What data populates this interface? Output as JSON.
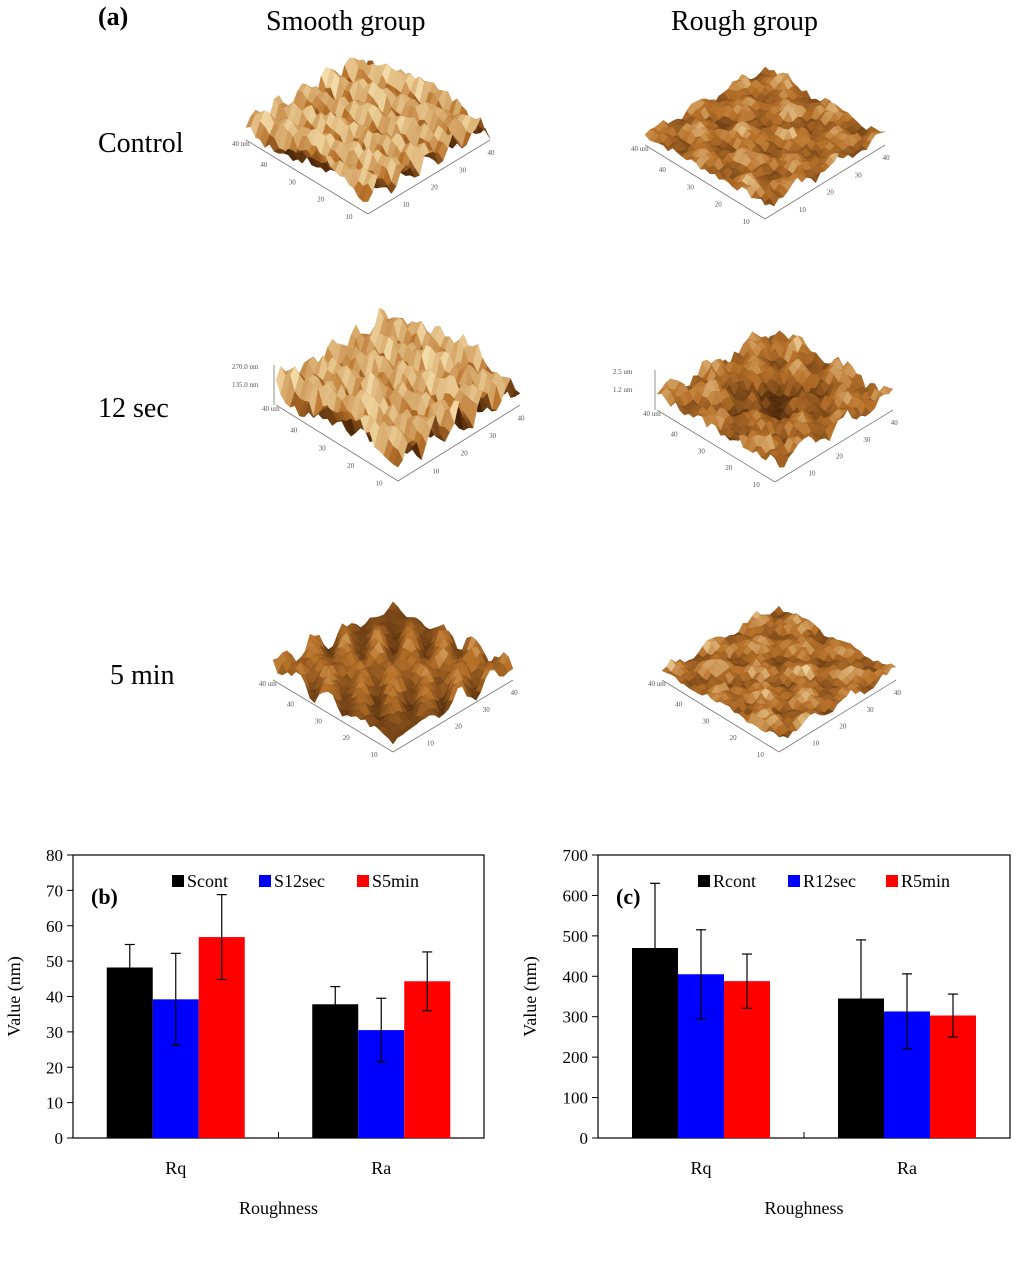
{
  "panel_a": {
    "label": "(a)",
    "columns": [
      "Smooth group",
      "Rough group"
    ],
    "rows": [
      "Control",
      "12 sec",
      "5 min"
    ],
    "axis_units": "um",
    "axis_ticks": [
      "10",
      "20",
      "30",
      "40"
    ],
    "z_labels": {
      "smooth_12sec": [
        "270.0 nm",
        "135.0 nm"
      ],
      "rough_12sec": [
        "2.5 um",
        "1.2 um"
      ]
    },
    "colors": {
      "highlight": "#f4dca8",
      "mid": "#b8722a",
      "dark": "#3c1c04"
    }
  },
  "chart_data": [
    {
      "type": "bar",
      "panel_label": "(b)",
      "title": "",
      "xlabel": "Roughness",
      "ylabel": "Value (nm)",
      "categories": [
        "Rq",
        "Ra"
      ],
      "ylim": [
        0,
        80
      ],
      "yticks": [
        0,
        10,
        20,
        30,
        40,
        50,
        60,
        70,
        80
      ],
      "series": [
        {
          "name": "Scont",
          "color": "#000000",
          "values": [
            48.2,
            37.8
          ],
          "errors": [
            6.5,
            5.0
          ]
        },
        {
          "name": "S12sec",
          "color": "#0000ff",
          "values": [
            39.2,
            30.5
          ],
          "errors": [
            13.0,
            9.0
          ]
        },
        {
          "name": "S5min",
          "color": "#ff0000",
          "values": [
            56.8,
            44.3
          ],
          "errors": [
            12.0,
            8.3
          ]
        }
      ],
      "legend": "top"
    },
    {
      "type": "bar",
      "panel_label": "(c)",
      "title": "",
      "xlabel": "Roughness",
      "ylabel": "Value (nm)",
      "categories": [
        "Rq",
        "Ra"
      ],
      "ylim": [
        0,
        700
      ],
      "yticks": [
        0,
        100,
        200,
        300,
        400,
        500,
        600,
        700
      ],
      "series": [
        {
          "name": "Rcont",
          "color": "#000000",
          "values": [
            470,
            345
          ],
          "errors": [
            160,
            145
          ]
        },
        {
          "name": "R12sec",
          "color": "#0000ff",
          "values": [
            405,
            313
          ],
          "errors": [
            110,
            93
          ]
        },
        {
          "name": "R5min",
          "color": "#ff0000",
          "values": [
            388,
            303
          ],
          "errors": [
            67,
            53
          ]
        }
      ],
      "legend": "top"
    }
  ]
}
